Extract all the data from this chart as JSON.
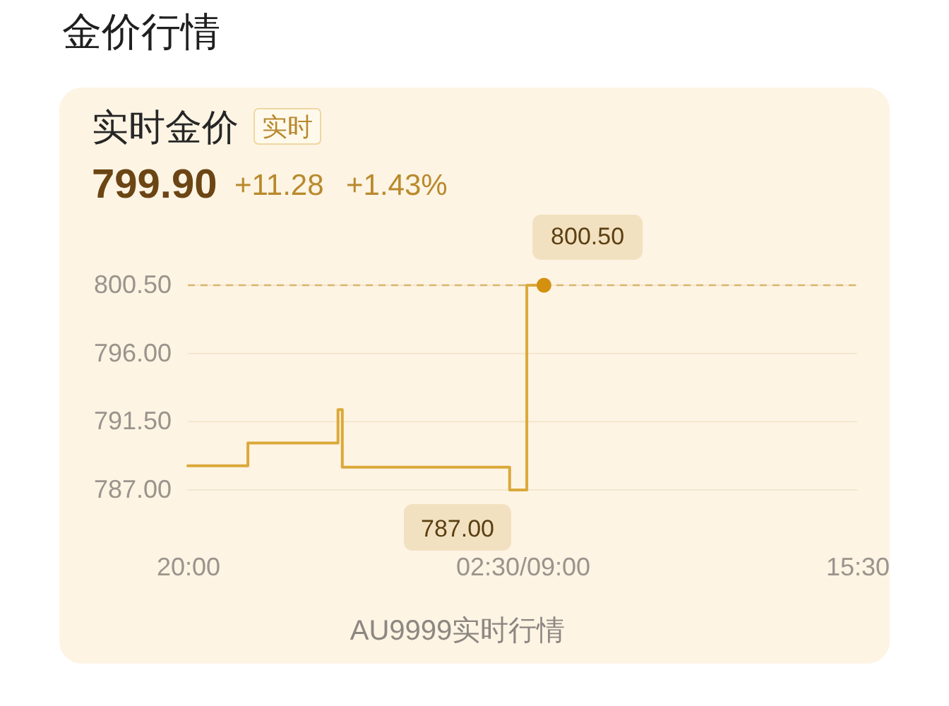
{
  "chart_data": {
    "type": "step",
    "title": "金价行情",
    "subtitle": "实时金价",
    "annotations": [
      "实时",
      "799.90",
      "+11.28",
      "+1.43%",
      "AU9999实时行情",
      "787.00",
      {
        "text": "800.50",
        "y": 800.5
      }
    ],
    "categories": [
      "20:00",
      null,
      null,
      null,
      null,
      null,
      null,
      null,
      null,
      null,
      null,
      null,
      null,
      null,
      null,
      null,
      null,
      null,
      null,
      null,
      null,
      null,
      null,
      null,
      null,
      null,
      null,
      null,
      null,
      null,
      null,
      null,
      null,
      null,
      null,
      null,
      null,
      null,
      null,
      null,
      null,
      null,
      null,
      null,
      null,
      null,
      null,
      null,
      null,
      null,
      null,
      null,
      null,
      null,
      null,
      null,
      null,
      null,
      null,
      null,
      null,
      null,
      null,
      null,
      null,
      null,
      null,
      null,
      null,
      null,
      null,
      null,
      null,
      null,
      null,
      null,
      null,
      null,
      "02:30/09:00",
      null,
      null,
      null,
      null,
      null,
      null,
      null,
      null,
      null,
      null,
      null,
      null,
      null,
      null,
      null,
      null,
      null,
      null,
      null,
      null,
      null,
      null,
      null,
      null,
      null,
      null,
      null,
      null,
      null,
      null,
      null,
      null,
      null,
      null,
      null,
      null,
      null,
      null,
      null,
      null,
      null,
      null,
      null,
      null,
      null,
      null,
      null,
      null,
      null,
      null,
      null,
      null,
      null,
      null,
      null,
      null,
      null,
      null,
      null,
      null,
      null,
      null,
      null,
      null,
      null,
      null,
      null,
      null,
      null,
      null,
      null,
      null,
      null,
      null,
      null,
      null,
      null,
      "15:30"
    ],
    "ylim": [
      787,
      800.5
    ],
    "yticks": [
      {
        "value": 787,
        "label": "787.00"
      },
      {
        "value": 791.5,
        "label": "791.50"
      },
      {
        "value": 796,
        "label": "796.00"
      },
      {
        "value": 800.5,
        "label": "800.50"
      }
    ],
    "series": [
      {
        "color": "#dba93a",
        "values": [
          788.6,
          788.6,
          788.6,
          788.6,
          788.6,
          788.6,
          788.6,
          788.6,
          788.6,
          788.6,
          788.6,
          788.6,
          788.6,
          788.6,
          790.1,
          790.1,
          790.1,
          790.1,
          790.1,
          790.1,
          790.1,
          790.1,
          790.1,
          790.1,
          790.1,
          790.1,
          790.1,
          790.1,
          790.1,
          790.1,
          790.1,
          790.1,
          790.1,
          790.1,
          790.1,
          792.3,
          788.5,
          788.5,
          788.5,
          788.5,
          788.5,
          788.5,
          788.5,
          788.5,
          788.5,
          788.5,
          788.5,
          788.5,
          788.5,
          788.5,
          788.5,
          788.5,
          788.5,
          788.5,
          788.5,
          788.5,
          788.5,
          788.5,
          788.5,
          788.5,
          788.5,
          788.5,
          788.5,
          788.5,
          788.5,
          788.5,
          788.5,
          788.5,
          788.5,
          788.5,
          788.5,
          788.5,
          788.5,
          788.5,
          788.5,
          787.0,
          787.0,
          787.0,
          787.0,
          800.5,
          800.5,
          800.5,
          800.5,
          800.5,
          null,
          null,
          null,
          null,
          null,
          null,
          null,
          null,
          null,
          null,
          null,
          null,
          null,
          null,
          null,
          null,
          null,
          null,
          null,
          null,
          null,
          null,
          null,
          null,
          null,
          null,
          null,
          null,
          null,
          null,
          null,
          null,
          null,
          null,
          null,
          null,
          null,
          null,
          null,
          null,
          null,
          null,
          null,
          null,
          null,
          null,
          null,
          null,
          null,
          null,
          null,
          null,
          null,
          null,
          null,
          null,
          null,
          null,
          null,
          null,
          null,
          null,
          null,
          null,
          null,
          null,
          null,
          null,
          null,
          null,
          null,
          null,
          null
        ]
      },
      {
        "type": "scatter",
        "color": "#d4900f",
        "values": [
          null,
          null,
          null,
          null,
          null,
          null,
          null,
          null,
          null,
          null,
          null,
          null,
          null,
          null,
          null,
          null,
          null,
          null,
          null,
          null,
          null,
          null,
          null,
          null,
          null,
          null,
          null,
          null,
          null,
          null,
          null,
          null,
          null,
          null,
          null,
          null,
          null,
          null,
          null,
          null,
          null,
          null,
          null,
          null,
          null,
          null,
          null,
          null,
          null,
          null,
          null,
          null,
          null,
          null,
          null,
          null,
          null,
          null,
          null,
          null,
          null,
          null,
          null,
          null,
          null,
          null,
          null,
          null,
          null,
          null,
          null,
          null,
          null,
          null,
          null,
          null,
          null,
          null,
          null,
          null,
          null,
          null,
          null,
          800.5,
          null,
          null,
          null,
          null,
          null,
          null,
          null,
          null,
          null,
          null,
          null,
          null,
          null,
          null,
          null,
          null,
          null,
          null,
          null,
          null,
          null,
          null,
          null,
          null,
          null,
          null,
          null,
          null,
          null,
          null,
          null,
          null,
          null,
          null,
          null,
          null,
          null,
          null,
          null,
          null,
          null,
          null,
          null,
          null,
          null,
          null,
          null,
          null,
          null,
          null,
          null,
          null,
          null,
          null,
          null,
          null,
          null,
          null,
          null,
          null,
          null,
          null,
          null,
          null,
          null,
          null,
          null,
          null,
          null,
          null,
          null,
          null,
          null
        ]
      }
    ],
    "ref_lines": [
      {
        "axis": "y",
        "value": 800.5,
        "color": "#d9b46a",
        "line_style": "dashed"
      }
    ],
    "grid": "y"
  }
}
